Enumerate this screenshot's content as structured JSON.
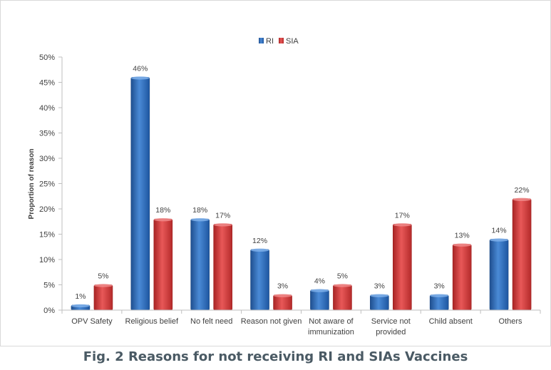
{
  "caption": "Fig. 2 Reasons for not receiving RI and SIAs Vaccines",
  "chart_data": {
    "type": "bar",
    "title": "",
    "xlabel": "",
    "ylabel": "Proportion of reason",
    "ylim": [
      0,
      50
    ],
    "y_tick_step": 5,
    "y_tick_suffix": "%",
    "grid": false,
    "legend_position": "top-center",
    "categories": [
      [
        "OPV Safety"
      ],
      [
        "Religious belief"
      ],
      [
        "No felt need"
      ],
      [
        "Reason not given"
      ],
      [
        "Not aware of",
        "immunization"
      ],
      [
        "Service not",
        "provided"
      ],
      [
        "Child absent"
      ],
      [
        "Others"
      ]
    ],
    "series": [
      {
        "name": "RI",
        "color": "#2e6fc0",
        "values": [
          1,
          46,
          18,
          12,
          4,
          3,
          3,
          14
        ],
        "labels": [
          "1%",
          "46%",
          "18%",
          "12%",
          "4%",
          "3%",
          "3%",
          "14%"
        ]
      },
      {
        "name": "SIA",
        "color": "#d63b3b",
        "values": [
          5,
          18,
          17,
          3,
          5,
          17,
          13,
          22
        ],
        "labels": [
          "5%",
          "18%",
          "17%",
          "3%",
          "5%",
          "17%",
          "13%",
          "22%"
        ]
      }
    ]
  }
}
